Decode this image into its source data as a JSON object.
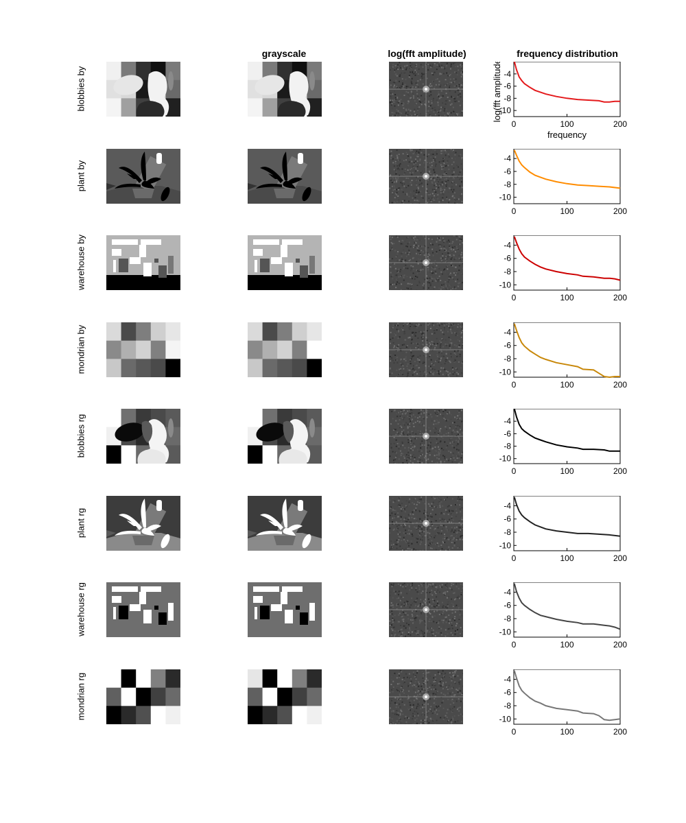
{
  "figure": {
    "column_titles": [
      "",
      "grayscale",
      "log(fft amplitude)",
      "frequency distribution"
    ],
    "row_labels": [
      "blobbies by",
      "plant by",
      "warehouse by",
      "mondrian by",
      "blobbies rg",
      "plant rg",
      "warehouse rg",
      "mondrian rg"
    ]
  },
  "chart_data": [
    {
      "type": "line",
      "title": "frequency distribution",
      "row": "blobbies by",
      "xlabel": "frequency",
      "ylabel": "log(fft amplitude)",
      "xlim": [
        0,
        200
      ],
      "ylim": [
        -11,
        -2
      ],
      "xticks": [
        0,
        100,
        200
      ],
      "yticks": [
        -4,
        -6,
        -8,
        -10
      ],
      "color": "#e41a1c",
      "x": [
        1,
        5,
        10,
        15,
        20,
        30,
        40,
        50,
        60,
        80,
        100,
        120,
        140,
        160,
        170,
        180,
        190,
        200
      ],
      "y": [
        -2.0,
        -3.3,
        -4.5,
        -5.1,
        -5.6,
        -6.2,
        -6.7,
        -7.0,
        -7.3,
        -7.7,
        -8.0,
        -8.2,
        -8.3,
        -8.4,
        -8.6,
        -8.6,
        -8.5,
        -8.5
      ]
    },
    {
      "type": "line",
      "row": "plant by",
      "xlim": [
        0,
        200
      ],
      "ylim": [
        -11,
        -2.5
      ],
      "xticks": [
        0,
        100,
        200
      ],
      "yticks": [
        -4,
        -6,
        -8,
        -10
      ],
      "color": "#ff8c00",
      "x": [
        1,
        5,
        10,
        15,
        20,
        30,
        40,
        50,
        60,
        80,
        100,
        120,
        140,
        160,
        180,
        200
      ],
      "y": [
        -2.7,
        -3.5,
        -4.4,
        -5.0,
        -5.4,
        -6.1,
        -6.6,
        -6.9,
        -7.2,
        -7.6,
        -7.9,
        -8.1,
        -8.2,
        -8.3,
        -8.4,
        -8.6
      ]
    },
    {
      "type": "line",
      "row": "warehouse by",
      "xlim": [
        0,
        200
      ],
      "ylim": [
        -10.8,
        -2.5
      ],
      "xticks": [
        0,
        100,
        200
      ],
      "yticks": [
        -4,
        -6,
        -8,
        -10
      ],
      "color": "#cc0000",
      "x": [
        1,
        5,
        10,
        15,
        20,
        30,
        40,
        50,
        60,
        80,
        100,
        120,
        130,
        150,
        170,
        180,
        190,
        200
      ],
      "y": [
        -2.7,
        -3.6,
        -4.6,
        -5.3,
        -5.8,
        -6.4,
        -6.9,
        -7.3,
        -7.6,
        -8.0,
        -8.3,
        -8.5,
        -8.7,
        -8.8,
        -9.0,
        -9.0,
        -9.1,
        -9.3
      ]
    },
    {
      "type": "line",
      "row": "mondrian by",
      "xlim": [
        0,
        200
      ],
      "ylim": [
        -10.8,
        -2.5
      ],
      "xticks": [
        0,
        100,
        200
      ],
      "yticks": [
        -4,
        -6,
        -8,
        -10
      ],
      "color": "#c8880a",
      "x": [
        1,
        5,
        10,
        15,
        20,
        30,
        40,
        50,
        60,
        80,
        100,
        120,
        130,
        150,
        160,
        170,
        180,
        190,
        200
      ],
      "y": [
        -2.7,
        -3.7,
        -4.8,
        -5.6,
        -6.1,
        -6.8,
        -7.3,
        -7.8,
        -8.1,
        -8.6,
        -8.9,
        -9.2,
        -9.6,
        -9.7,
        -10.2,
        -10.7,
        -10.8,
        -10.7,
        -10.7
      ]
    },
    {
      "type": "line",
      "row": "blobbies rg",
      "xlim": [
        0,
        200
      ],
      "ylim": [
        -10.8,
        -2.0
      ],
      "xticks": [
        0,
        100,
        200
      ],
      "yticks": [
        -4,
        -6,
        -8,
        -10
      ],
      "color": "#000000",
      "x": [
        1,
        5,
        10,
        15,
        20,
        30,
        40,
        50,
        60,
        80,
        100,
        120,
        130,
        150,
        170,
        180,
        190,
        200
      ],
      "y": [
        -2.0,
        -3.3,
        -4.5,
        -5.2,
        -5.6,
        -6.2,
        -6.7,
        -7.0,
        -7.3,
        -7.8,
        -8.1,
        -8.3,
        -8.5,
        -8.5,
        -8.6,
        -8.8,
        -8.8,
        -8.8
      ]
    },
    {
      "type": "line",
      "row": "plant rg",
      "xlim": [
        0,
        200
      ],
      "ylim": [
        -10.8,
        -2.5
      ],
      "xticks": [
        0,
        100,
        200
      ],
      "yticks": [
        -4,
        -6,
        -8,
        -10
      ],
      "color": "#222222",
      "x": [
        1,
        5,
        10,
        15,
        20,
        30,
        40,
        50,
        60,
        80,
        100,
        120,
        140,
        160,
        180,
        200
      ],
      "y": [
        -2.7,
        -3.8,
        -4.8,
        -5.4,
        -5.8,
        -6.4,
        -6.9,
        -7.2,
        -7.5,
        -7.8,
        -8.0,
        -8.2,
        -8.2,
        -8.3,
        -8.4,
        -8.6
      ]
    },
    {
      "type": "line",
      "row": "warehouse rg",
      "xlim": [
        0,
        200
      ],
      "ylim": [
        -10.8,
        -2.5
      ],
      "xticks": [
        0,
        100,
        200
      ],
      "yticks": [
        -4,
        -6,
        -8,
        -10
      ],
      "color": "#444444",
      "x": [
        1,
        5,
        10,
        15,
        20,
        30,
        40,
        50,
        60,
        80,
        100,
        120,
        130,
        150,
        170,
        180,
        190,
        200
      ],
      "y": [
        -2.7,
        -3.9,
        -4.9,
        -5.6,
        -6.0,
        -6.6,
        -7.1,
        -7.5,
        -7.7,
        -8.1,
        -8.4,
        -8.6,
        -8.8,
        -8.8,
        -9.0,
        -9.1,
        -9.3,
        -9.6
      ]
    },
    {
      "type": "line",
      "row": "mondrian rg",
      "xlim": [
        0,
        200
      ],
      "ylim": [
        -10.8,
        -2.5
      ],
      "xticks": [
        0,
        100,
        200
      ],
      "yticks": [
        -4,
        -6,
        -8,
        -10
      ],
      "color": "#777777",
      "x": [
        1,
        5,
        10,
        15,
        20,
        30,
        40,
        50,
        60,
        80,
        100,
        120,
        130,
        150,
        160,
        170,
        180,
        190,
        200
      ],
      "y": [
        -2.7,
        -3.8,
        -5.0,
        -5.7,
        -6.1,
        -6.8,
        -7.3,
        -7.6,
        -8.0,
        -8.4,
        -8.6,
        -8.8,
        -9.1,
        -9.2,
        -9.5,
        -10.1,
        -10.2,
        -10.1,
        -10.0
      ]
    }
  ],
  "mosaics": {
    "rows": [
      {
        "kind": "blobs",
        "grid": [
          [
            "#f0f0f0",
            "#7a7a7a",
            "#303030",
            "#101010",
            "#7a7a7a"
          ],
          [
            "#e0e0e0",
            "#d8d8d8",
            "#1a1a1a",
            "#e0e0e0",
            "#6a6a6a"
          ],
          [
            "#f4f4f4",
            "#a0a0a0",
            "#404040",
            "#ffffff",
            "#202020"
          ]
        ],
        "gray_grid": [
          [
            "#f0f0f0",
            "#7a7a7a",
            "#303030",
            "#101010",
            "#7a7a7a"
          ],
          [
            "#e0e0e0",
            "#d8d8d8",
            "#1a1a1a",
            "#e0e0e0",
            "#6a6a6a"
          ],
          [
            "#f4f4f4",
            "#a0a0a0",
            "#404040",
            "#ffffff",
            "#202020"
          ]
        ]
      },
      {
        "kind": "plant",
        "bg": "#5a5a5a",
        "fg": "#4a4a4a",
        "accent": "#000000",
        "light": "#ffffff"
      },
      {
        "kind": "warehouse",
        "bg": "#b4b4b4",
        "floor": "#000000",
        "light": "#ffffff",
        "dark": "#555555"
      },
      {
        "kind": "mondrian",
        "grid": [
          [
            "#dadada",
            "#4a4a4a",
            "#7e7e7e",
            "#cfcfcf",
            "#e6e6e6"
          ],
          [
            "#8a8a8a",
            "#b0b0b0",
            "#d2d2d2",
            "#808080",
            "#f4f4f4"
          ],
          [
            "#c8c8c8",
            "#6a6a6a",
            "#585858",
            "#4a4a4a",
            "#000000"
          ]
        ],
        "gray_grid": [
          [
            "#dadada",
            "#4a4a4a",
            "#7e7e7e",
            "#cfcfcf",
            "#e6e6e6"
          ],
          [
            "#8a8a8a",
            "#b0b0b0",
            "#d2d2d2",
            "#808080",
            "#ffffff"
          ],
          [
            "#c8c8c8",
            "#6a6a6a",
            "#585858",
            "#4a4a4a",
            "#000000"
          ]
        ]
      },
      {
        "kind": "blobs",
        "grid": [
          [
            "#ffffff",
            "#707070",
            "#3a3a3a",
            "#4a4a4a",
            "#5a5a5a"
          ],
          [
            "#f0f0f0",
            "#4a4a4a",
            "#2a2a2a",
            "#5a5a5a",
            "#6a6a6a"
          ],
          [
            "#000000",
            "#ffffff",
            "#6a6a6a",
            "#e6e6e6",
            "#5a5a5a"
          ]
        ],
        "gray_grid": [
          [
            "#ffffff",
            "#707070",
            "#3a3a3a",
            "#4a4a4a",
            "#5a5a5a"
          ],
          [
            "#f0f0f0",
            "#4a4a4a",
            "#2a2a2a",
            "#5a5a5a",
            "#6a6a6a"
          ],
          [
            "#000000",
            "#ffffff",
            "#6a6a6a",
            "#e6e6e6",
            "#5a5a5a"
          ]
        ]
      },
      {
        "kind": "plant",
        "bg": "#3c3c3c",
        "fg": "#8a8a8a",
        "accent": "#ffffff",
        "light": "#ffffff"
      },
      {
        "kind": "warehouse",
        "bg": "#6e6e6e",
        "floor": "#6e6e6e",
        "light": "#ffffff",
        "dark": "#000000"
      },
      {
        "kind": "mondrian",
        "grid": [
          [
            "#ffffff",
            "#000000",
            "#ffffff",
            "#808080",
            "#2a2a2a"
          ],
          [
            "#606060",
            "#ffffff",
            "#000000",
            "#404040",
            "#6a6a6a"
          ],
          [
            "#000000",
            "#2a2a2a",
            "#505050",
            "#ffffff",
            "#f0f0f0"
          ]
        ],
        "gray_grid": [
          [
            "#e6e6e6",
            "#000000",
            "#ffffff",
            "#808080",
            "#2a2a2a"
          ],
          [
            "#606060",
            "#ffffff",
            "#000000",
            "#404040",
            "#6a6a6a"
          ],
          [
            "#000000",
            "#2a2a2a",
            "#505050",
            "#ffffff",
            "#f0f0f0"
          ]
        ]
      }
    ]
  }
}
